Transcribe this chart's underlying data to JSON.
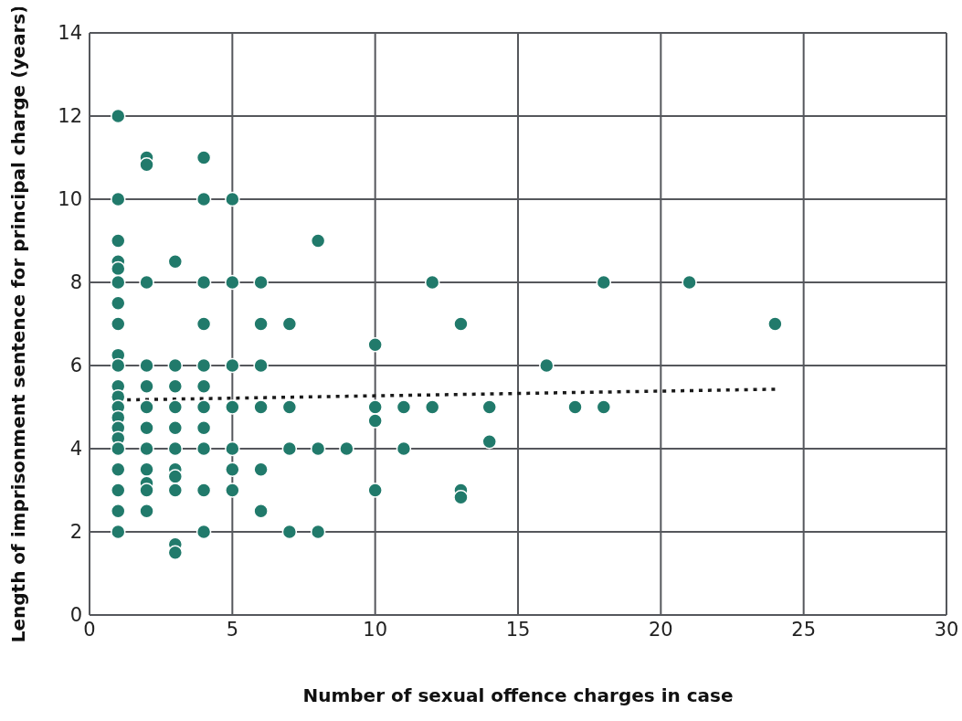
{
  "chart_data": {
    "type": "scatter",
    "xlabel": "Number of sexual offence charges in case",
    "ylabel": "Length of imprisonment sentence for principal charge (years)",
    "xlim": [
      0,
      30
    ],
    "ylim": [
      0,
      14
    ],
    "xticks": [
      0,
      5,
      10,
      15,
      20,
      25,
      30
    ],
    "yticks": [
      0,
      2,
      4,
      6,
      8,
      10,
      12,
      14
    ],
    "grid": true,
    "marker": "circle",
    "series": [
      {
        "color": "#217a6b",
        "x": [
          1,
          1,
          1,
          1,
          1,
          1,
          1,
          1,
          1,
          1,
          1,
          1,
          1,
          1,
          1,
          1,
          1,
          1,
          1,
          1,
          1,
          2,
          2,
          2,
          2,
          2,
          2,
          2,
          2,
          2,
          2,
          2,
          2,
          3,
          3,
          3,
          3,
          3,
          3,
          3,
          3,
          3,
          3,
          3,
          4,
          4,
          4,
          4,
          4,
          4,
          4,
          4,
          4,
          4,
          4,
          5,
          5,
          5,
          5,
          5,
          5,
          5,
          6,
          6,
          6,
          6,
          6,
          6,
          7,
          7,
          7,
          7,
          8,
          8,
          8,
          9,
          10,
          10,
          10,
          10,
          11,
          11,
          12,
          12,
          13,
          13,
          13,
          14,
          14,
          16,
          17,
          18,
          18,
          21,
          24
        ],
        "values": [
          12,
          10,
          9,
          8.5,
          8.33,
          8,
          7.5,
          7,
          6.25,
          6,
          5.5,
          5.25,
          5,
          4.75,
          4.5,
          4.25,
          4,
          3.5,
          3,
          2.5,
          2,
          11,
          10.83,
          8,
          6,
          5.5,
          5,
          4.5,
          4,
          3.5,
          3.17,
          3,
          2.5,
          8.5,
          6,
          5.5,
          5,
          4.5,
          4,
          3.5,
          3.33,
          3,
          1.7,
          1.5,
          11,
          10,
          8,
          7,
          6,
          5.5,
          5,
          4.5,
          4,
          3,
          2,
          10,
          8,
          6,
          5,
          4,
          3.5,
          3,
          8,
          7,
          6,
          5,
          3.5,
          2.5,
          7,
          5,
          4,
          2,
          9,
          4,
          2,
          4,
          6.5,
          5,
          4.67,
          3,
          5,
          4,
          8,
          5,
          7,
          3,
          2.83,
          5,
          4.17,
          6,
          5,
          8,
          5,
          8,
          7
        ]
      },
      {
        "type": "line",
        "color": "#1a1a1a",
        "line_style": "dotted",
        "marker": "none",
        "x": [
          1,
          24
        ],
        "values": [
          5.17,
          5.43
        ]
      }
    ]
  }
}
